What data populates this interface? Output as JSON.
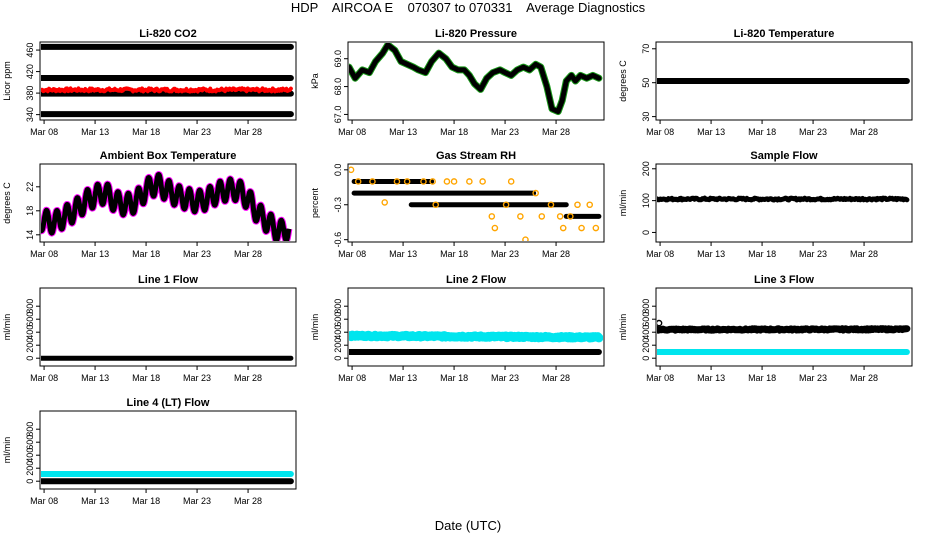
{
  "title": "HDP    AIRCOA E    070307 to 070331    Average Diagnostics",
  "xlabel": "Date (UTC)",
  "x_ticks": [
    "Mar 08",
    "Mar 13",
    "Mar 18",
    "Mar 23",
    "Mar 28"
  ],
  "colors": {
    "black": "#000000",
    "red": "#ff0000",
    "green": "#1a9a1a",
    "magenta": "#ff00ff",
    "cyan": "#00e5ee",
    "orange": "#ffa500",
    "blue": "#3333cc"
  },
  "chart_data": [
    {
      "type": "scatter",
      "title": "Li-820 CO2",
      "ylabel": "Licor ppm",
      "ylim": [
        330,
        475
      ],
      "yticks": [
        "340",
        "380",
        "420",
        "460"
      ],
      "xlim": [
        7.6,
        32.7
      ],
      "series": [
        {
          "name": "co2-level-1",
          "color": "#000000",
          "kind": "band",
          "x": [
            7.7,
            32.2
          ],
          "y": [
            466,
            466
          ],
          "thick": 6
        },
        {
          "name": "co2-level-2",
          "color": "#000000",
          "kind": "band",
          "x": [
            7.7,
            32.2
          ],
          "y": [
            408,
            408
          ],
          "thick": 6
        },
        {
          "name": "co2-level-3",
          "color": "#000000",
          "kind": "band",
          "x": [
            7.7,
            32.2
          ],
          "y": [
            379,
            379
          ],
          "thick": 6
        },
        {
          "name": "co2-level-4",
          "color": "#000000",
          "kind": "band",
          "x": [
            7.7,
            32.2
          ],
          "y": [
            341,
            341
          ],
          "thick": 6
        },
        {
          "name": "co2-ambient",
          "color": "#ff0000",
          "kind": "noisy",
          "x": [
            7.7,
            32.2
          ],
          "y": [
            386,
            386
          ],
          "amp": 3,
          "thick": 4
        }
      ]
    },
    {
      "type": "scatter",
      "title": "Li-820 Pressure",
      "ylabel": "kPa",
      "ylim": [
        66.8,
        69.6
      ],
      "yticks": [
        "67.0",
        "68.0",
        "69.0"
      ],
      "xlim": [
        7.6,
        32.7
      ],
      "series": [
        {
          "name": "pressure",
          "color": "#000000",
          "kind": "line",
          "thick": 5,
          "halo": "#1a9a1a",
          "x": [
            7.7,
            8.3,
            9.0,
            9.7,
            10.3,
            11.0,
            11.5,
            12.2,
            12.8,
            13.4,
            14.0,
            14.5,
            15.2,
            15.8,
            16.5,
            17.2,
            17.8,
            18.4,
            19.0,
            19.5,
            20.0,
            20.6,
            21.2,
            21.8,
            22.5,
            23.0,
            23.6,
            24.2,
            24.8,
            25.4,
            26.0,
            26.5,
            27.1,
            27.6,
            28.2,
            28.6,
            29.0,
            29.5,
            29.9,
            30.4,
            31.0,
            31.6,
            32.2
          ],
          "y": [
            68.7,
            68.3,
            68.6,
            68.5,
            68.9,
            69.2,
            69.5,
            69.3,
            68.9,
            68.8,
            68.7,
            68.6,
            68.5,
            68.9,
            69.2,
            69.0,
            68.7,
            68.6,
            68.6,
            68.4,
            68.1,
            67.9,
            68.3,
            68.5,
            68.6,
            68.5,
            68.4,
            68.6,
            68.7,
            68.6,
            68.8,
            68.7,
            68.0,
            67.2,
            67.1,
            67.5,
            68.2,
            68.4,
            68.2,
            68.4,
            68.3,
            68.4,
            68.3
          ]
        }
      ]
    },
    {
      "type": "scatter",
      "title": "Li-820 Temperature",
      "ylabel": "degrees C",
      "ylim": [
        28,
        74
      ],
      "yticks": [
        "30",
        "50",
        "70"
      ],
      "xlim": [
        7.6,
        32.7
      ],
      "series": [
        {
          "name": "licor-temp",
          "color": "#000000",
          "kind": "band",
          "x": [
            7.7,
            32.2
          ],
          "y": [
            51,
            51
          ],
          "thick": 6
        }
      ]
    },
    {
      "type": "scatter",
      "title": "Ambient Box Temperature",
      "ylabel": "degrees C",
      "ylim": [
        12.8,
        25.8
      ],
      "yticks": [
        "14",
        "18",
        "22"
      ],
      "xlim": [
        7.6,
        32.7
      ],
      "series": [
        {
          "name": "box-temp-min",
          "color": "#ff00ff",
          "kind": "band",
          "x": [
            7.8,
            8.4
          ],
          "y": [
            15.6,
            15.6
          ],
          "thick": 6
        },
        {
          "name": "box-temp",
          "color": "#000000",
          "kind": "diurnal",
          "thick": 5,
          "halo": "#ff00ff",
          "amp": 1.8,
          "x": [
            7.7,
            9.0,
            10.0,
            11.0,
            12.0,
            13.0,
            14.0,
            15.0,
            16.0,
            17.0,
            18.0,
            19.0,
            20.0,
            21.0,
            22.0,
            23.0,
            24.0,
            25.0,
            26.0,
            27.0,
            28.0,
            29.0,
            30.0,
            31.0,
            32.0
          ],
          "y": [
            16.5,
            16.0,
            17.0,
            18.0,
            19.5,
            20.5,
            21.0,
            19.5,
            19.0,
            19.5,
            21.5,
            22.5,
            21.5,
            20.5,
            20.0,
            19.5,
            20.0,
            21.0,
            21.5,
            21.5,
            20.0,
            17.5,
            16.0,
            14.5,
            15.0
          ]
        }
      ]
    },
    {
      "type": "scatter",
      "title": "Gas Stream RH",
      "ylabel": "percent",
      "ylim": [
        -0.62,
        0.05
      ],
      "yticks": [
        "0.0",
        "-0.3",
        "-0.6"
      ],
      "xlim": [
        7.6,
        32.7
      ],
      "series": [
        {
          "name": "rh-a",
          "color": "#000000",
          "kind": "steps",
          "thick": 5,
          "segments": [
            [
              8.2,
              15.8,
              -0.1
            ],
            [
              8.2,
              25.8,
              -0.2
            ],
            [
              13.8,
              29.0,
              -0.3
            ],
            [
              29.0,
              32.2,
              -0.4
            ]
          ]
        },
        {
          "name": "rh-b",
          "color": "#ffa500",
          "kind": "points",
          "pts": [
            [
              7.9,
              0.0
            ],
            [
              8.6,
              -0.1
            ],
            [
              10.0,
              -0.1
            ],
            [
              11.2,
              -0.28
            ],
            [
              12.4,
              -0.1
            ],
            [
              13.4,
              -0.1
            ],
            [
              15.0,
              -0.1
            ],
            [
              15.9,
              -0.1
            ],
            [
              16.2,
              -0.3
            ],
            [
              17.3,
              -0.1
            ],
            [
              18.0,
              -0.1
            ],
            [
              19.5,
              -0.1
            ],
            [
              20.8,
              -0.1
            ],
            [
              21.7,
              -0.4
            ],
            [
              22.0,
              -0.5
            ],
            [
              23.1,
              -0.3
            ],
            [
              23.6,
              -0.1
            ],
            [
              24.5,
              -0.4
            ],
            [
              25.0,
              -0.6
            ],
            [
              26.0,
              -0.2
            ],
            [
              26.6,
              -0.4
            ],
            [
              27.5,
              -0.3
            ],
            [
              28.4,
              -0.4
            ],
            [
              28.7,
              -0.5
            ],
            [
              29.4,
              -0.4
            ],
            [
              30.1,
              -0.3
            ],
            [
              30.5,
              -0.5
            ],
            [
              31.3,
              -0.3
            ],
            [
              31.9,
              -0.5
            ]
          ]
        }
      ]
    },
    {
      "type": "scatter",
      "title": "Sample Flow",
      "ylabel": "ml/min",
      "ylim": [
        -30,
        215
      ],
      "yticks": [
        "0",
        "100",
        "200"
      ],
      "xlim": [
        7.6,
        32.7
      ],
      "series": [
        {
          "name": "sample-flow",
          "color": "#000000",
          "kind": "noisy",
          "x": [
            7.7,
            32.2
          ],
          "y": [
            105,
            105
          ],
          "amp": 3,
          "thick": 5
        }
      ]
    },
    {
      "type": "scatter",
      "title": "Line 1 Flow",
      "ylabel": "ml/min",
      "ylim": [
        -120,
        1080
      ],
      "yticks": [
        "0",
        "200",
        "400",
        "600",
        "800"
      ],
      "xlim": [
        7.6,
        32.7
      ],
      "series": [
        {
          "name": "line1-flow",
          "color": "#000000",
          "kind": "band",
          "x": [
            7.7,
            32.2
          ],
          "y": [
            0,
            0
          ],
          "thick": 5
        }
      ]
    },
    {
      "type": "scatter",
      "title": "Line 2 Flow",
      "ylabel": "ml/min",
      "ylim": [
        -120,
        1080
      ],
      "yticks": [
        "0",
        "200",
        "400",
        "600",
        "800"
      ],
      "xlim": [
        7.6,
        32.7
      ],
      "series": [
        {
          "name": "line2-flow-high",
          "color": "#00e5ee",
          "kind": "noisy",
          "x": [
            7.7,
            32.2
          ],
          "y": [
            345,
            320
          ],
          "amp": 12,
          "thick": 9
        },
        {
          "name": "line2-flow-low",
          "color": "#000000",
          "kind": "band",
          "x": [
            7.7,
            32.2
          ],
          "y": [
            95,
            95
          ],
          "thick": 6
        }
      ]
    },
    {
      "type": "scatter",
      "title": "Line 3 Flow",
      "ylabel": "ml/min",
      "ylim": [
        -120,
        1080
      ],
      "yticks": [
        "0",
        "200",
        "400",
        "600",
        "800"
      ],
      "xlim": [
        7.6,
        32.7
      ],
      "series": [
        {
          "name": "line3-flow-high",
          "color": "#000000",
          "kind": "noisy",
          "x": [
            7.7,
            32.2
          ],
          "y": [
            440,
            445
          ],
          "amp": 10,
          "thick": 7
        },
        {
          "name": "line3-flow-start",
          "color": "#000000",
          "kind": "points",
          "pts": [
            [
              7.9,
              540
            ]
          ]
        },
        {
          "name": "line3-flow-low",
          "color": "#00e5ee",
          "kind": "band",
          "x": [
            7.7,
            32.2
          ],
          "y": [
            95,
            95
          ],
          "thick": 6
        }
      ]
    },
    {
      "type": "scatter",
      "title": "Line 4 (LT) Flow",
      "ylabel": "ml/min",
      "ylim": [
        -120,
        1080
      ],
      "yticks": [
        "0",
        "200",
        "400",
        "600",
        "800"
      ],
      "xlim": [
        7.6,
        32.7
      ],
      "series": [
        {
          "name": "line4-flow-high",
          "color": "#00e5ee",
          "kind": "band",
          "x": [
            7.7,
            32.2
          ],
          "y": [
            110,
            110
          ],
          "thick": 6
        },
        {
          "name": "line4-flow-low",
          "color": "#000000",
          "kind": "band",
          "x": [
            7.7,
            32.2
          ],
          "y": [
            0,
            0
          ],
          "thick": 6
        }
      ]
    }
  ]
}
